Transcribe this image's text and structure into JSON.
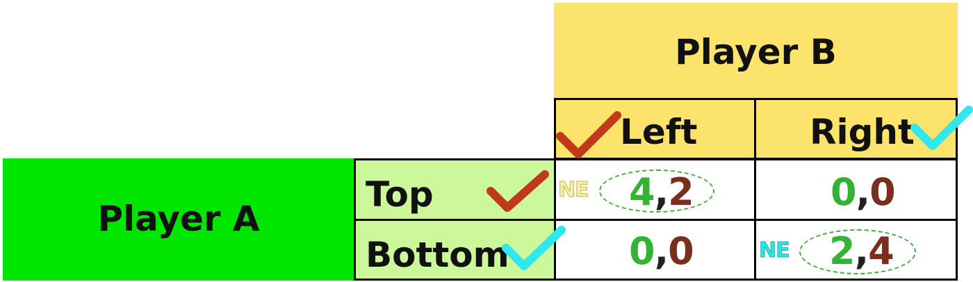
{
  "player_b": {
    "label": "Player B",
    "strategies": [
      "Left",
      "Right"
    ]
  },
  "player_a": {
    "label": "Player A",
    "strategies": [
      "Top",
      "Bottom"
    ]
  },
  "payoffs": {
    "top_left": {
      "a": "4",
      "b": "2",
      "nash": true,
      "marker": "NE"
    },
    "top_right": {
      "a": "0",
      "b": "0",
      "nash": false
    },
    "bottom_left": {
      "a": "0",
      "b": "0",
      "nash": false
    },
    "bottom_right": {
      "a": "2",
      "b": "4",
      "nash": true,
      "marker": "NE"
    }
  },
  "separator": ",",
  "colors": {
    "player_b_header": "#fce36c",
    "player_a_header": "#00e600",
    "player_a_strategies": "#ccf79a",
    "payoff_a": "#33b233",
    "payoff_b": "#7a2e1e",
    "best_response_a": "#c0391b",
    "best_response_b": "#2ee8ee"
  },
  "icons": {
    "best_response_a": "check-mark-icon",
    "best_response_b": "check-mark-icon"
  }
}
